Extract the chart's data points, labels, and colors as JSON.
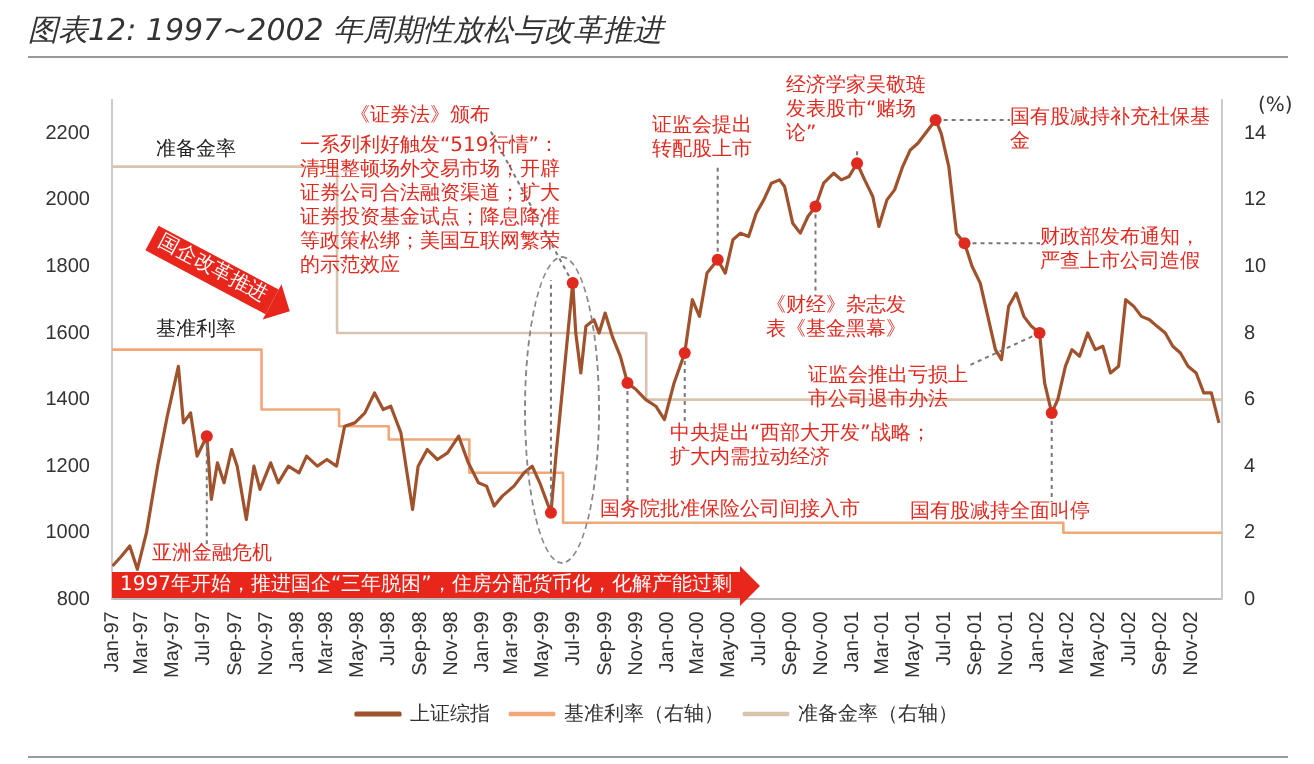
{
  "chart_data": {
    "type": "line",
    "title": "图表12: 1997~2002 年周期性放松与改革推进",
    "y2label": "(%)",
    "xlim": [
      "1997-01-01",
      "2002-12-31"
    ],
    "xticks": [
      {
        "value": "1997-01",
        "label": "Jan-97"
      },
      {
        "value": "1997-03",
        "label": "Mar-97"
      },
      {
        "value": "1997-05",
        "label": "May-97"
      },
      {
        "value": "1997-07",
        "label": "Jul-97"
      },
      {
        "value": "1997-09",
        "label": "Sep-97"
      },
      {
        "value": "1997-11",
        "label": "Nov-97"
      },
      {
        "value": "1998-01",
        "label": "Jan-98"
      },
      {
        "value": "1998-03",
        "label": "Mar-98"
      },
      {
        "value": "1998-05",
        "label": "May-98"
      },
      {
        "value": "1998-07",
        "label": "Jul-98"
      },
      {
        "value": "1998-09",
        "label": "Sep-98"
      },
      {
        "value": "1998-11",
        "label": "Nov-98"
      },
      {
        "value": "1999-01",
        "label": "Jan-99"
      },
      {
        "value": "1999-03",
        "label": "Mar-99"
      },
      {
        "value": "1999-05",
        "label": "May-99"
      },
      {
        "value": "1999-07",
        "label": "Jul-99"
      },
      {
        "value": "1999-09",
        "label": "Sep-99"
      },
      {
        "value": "1999-11",
        "label": "Nov-99"
      },
      {
        "value": "2000-01",
        "label": "Jan-00"
      },
      {
        "value": "2000-03",
        "label": "Mar-00"
      },
      {
        "value": "2000-05",
        "label": "May-00"
      },
      {
        "value": "2000-07",
        "label": "Jul-00"
      },
      {
        "value": "2000-09",
        "label": "Sep-00"
      },
      {
        "value": "2000-11",
        "label": "Nov-00"
      },
      {
        "value": "2001-01",
        "label": "Jan-01"
      },
      {
        "value": "2001-03",
        "label": "Mar-01"
      },
      {
        "value": "2001-05",
        "label": "May-01"
      },
      {
        "value": "2001-07",
        "label": "Jul-01"
      },
      {
        "value": "2001-09",
        "label": "Sep-01"
      },
      {
        "value": "2001-11",
        "label": "Nov-01"
      },
      {
        "value": "2002-01",
        "label": "Jan-02"
      },
      {
        "value": "2002-03",
        "label": "Mar-02"
      },
      {
        "value": "2002-05",
        "label": "May-02"
      },
      {
        "value": "2002-07",
        "label": "Jul-02"
      },
      {
        "value": "2002-09",
        "label": "Sep-02"
      },
      {
        "value": "2002-11",
        "label": "Nov-02"
      }
    ],
    "ylim": [
      800,
      2300
    ],
    "yticks": [
      800,
      1000,
      1200,
      1400,
      1600,
      1800,
      2000,
      2200
    ],
    "y2lim": [
      0,
      15
    ],
    "y2ticks": [
      0,
      2,
      4,
      6,
      8,
      10,
      12,
      14
    ],
    "legend": "bottom",
    "marker": "none",
    "line_style": "solid",
    "series": [
      {
        "name": "上证综指",
        "type": "line",
        "color": "#a0522d",
        "x": [
          "1997-01-02",
          "1997-01-20",
          "1997-02-05",
          "1997-02-20",
          "1997-03-10",
          "1997-04-01",
          "1997-04-20",
          "1997-05-12",
          "1997-05-22",
          "1997-06-05",
          "1997-06-18",
          "1997-07-07",
          "1997-07-16",
          "1997-07-28",
          "1997-08-10",
          "1997-08-25",
          "1997-09-05",
          "1997-09-23",
          "1997-10-08",
          "1997-10-20",
          "1997-11-10",
          "1997-11-25",
          "1997-12-15",
          "1998-01-05",
          "1998-01-20",
          "1998-02-10",
          "1998-03-01",
          "1998-03-20",
          "1998-04-05",
          "1998-04-25",
          "1998-05-15",
          "1998-06-03",
          "1998-06-20",
          "1998-07-05",
          "1998-07-25",
          "1998-08-17",
          "1998-08-28",
          "1998-09-15",
          "1998-10-05",
          "1998-10-25",
          "1998-11-16",
          "1998-12-05",
          "1998-12-25",
          "1999-01-10",
          "1999-01-25",
          "1999-02-10",
          "1999-03-05",
          "1999-03-25",
          "1999-04-10",
          "1999-04-25",
          "1999-05-17",
          "1999-05-28",
          "1999-06-10",
          "1999-06-29",
          "1999-07-05",
          "1999-07-15",
          "1999-07-25",
          "1999-08-10",
          "1999-08-20",
          "1999-09-01",
          "1999-09-15",
          "1999-10-01",
          "1999-10-15",
          "1999-11-01",
          "1999-11-20",
          "1999-12-10",
          "1999-12-27",
          "2000-01-15",
          "2000-02-05",
          "2000-02-20",
          "2000-03-05",
          "2000-03-20",
          "2000-04-10",
          "2000-04-25",
          "2000-05-10",
          "2000-05-25",
          "2000-06-10",
          "2000-06-25",
          "2000-07-10",
          "2000-07-25",
          "2000-08-10",
          "2000-08-20",
          "2000-09-05",
          "2000-09-20",
          "2000-10-05",
          "2000-10-20",
          "2000-11-05",
          "2000-11-25",
          "2000-12-10",
          "2000-12-25",
          "2001-01-10",
          "2001-01-25",
          "2001-02-10",
          "2001-02-22",
          "2001-03-10",
          "2001-03-25",
          "2001-04-10",
          "2001-04-25",
          "2001-05-10",
          "2001-05-25",
          "2001-06-14",
          "2001-06-25",
          "2001-07-10",
          "2001-07-25",
          "2001-08-10",
          "2001-08-25",
          "2001-09-10",
          "2001-09-25",
          "2001-10-10",
          "2001-10-22",
          "2001-11-05",
          "2001-11-20",
          "2001-12-05",
          "2001-12-20",
          "2002-01-05",
          "2002-01-15",
          "2002-01-29",
          "2002-02-10",
          "2002-02-25",
          "2002-03-10",
          "2002-03-25",
          "2002-04-10",
          "2002-04-25",
          "2002-05-10",
          "2002-05-25",
          "2002-06-10",
          "2002-06-24",
          "2002-07-10",
          "2002-07-25",
          "2002-08-10",
          "2002-08-25",
          "2002-09-10",
          "2002-09-25",
          "2002-10-10",
          "2002-10-25",
          "2002-11-10",
          "2002-11-25",
          "2002-12-10",
          "2002-12-25"
        ],
        "values": [
          900,
          930,
          960,
          890,
          1000,
          1200,
          1350,
          1500,
          1330,
          1360,
          1230,
          1290,
          1100,
          1210,
          1150,
          1250,
          1200,
          1040,
          1200,
          1130,
          1210,
          1150,
          1200,
          1180,
          1230,
          1200,
          1220,
          1200,
          1320,
          1330,
          1360,
          1420,
          1370,
          1380,
          1300,
          1070,
          1200,
          1250,
          1220,
          1240,
          1290,
          1210,
          1150,
          1140,
          1080,
          1110,
          1140,
          1180,
          1200,
          1150,
          1060,
          1250,
          1450,
          1750,
          1600,
          1480,
          1620,
          1640,
          1600,
          1660,
          1590,
          1530,
          1450,
          1430,
          1400,
          1380,
          1340,
          1450,
          1540,
          1700,
          1650,
          1780,
          1820,
          1780,
          1880,
          1900,
          1890,
          1960,
          2000,
          2050,
          2060,
          2040,
          1930,
          1900,
          1950,
          1980,
          2050,
          2080,
          2060,
          2070,
          2110,
          2060,
          2010,
          1920,
          2000,
          2030,
          2100,
          2150,
          2170,
          2200,
          2240,
          2200,
          2100,
          1900,
          1870,
          1800,
          1750,
          1650,
          1550,
          1520,
          1680,
          1720,
          1650,
          1620,
          1600,
          1450,
          1360,
          1400,
          1500,
          1550,
          1530,
          1600,
          1550,
          1560,
          1480,
          1500,
          1700,
          1680,
          1650,
          1640,
          1620,
          1600,
          1560,
          1540,
          1500,
          1480,
          1420,
          1420,
          1330
        ]
      },
      {
        "name": "基准利率（右轴）",
        "type": "step",
        "axis": "y2",
        "color": "#f0a878",
        "x": [
          "1997-01-01",
          "1997-10-23",
          "1998-03-25",
          "1998-07-01",
          "1998-12-07",
          "1999-06-10",
          "2002-02-21",
          "2002-12-31"
        ],
        "values": [
          7.5,
          5.7,
          5.2,
          4.8,
          3.8,
          2.3,
          2.0,
          2.0
        ]
      },
      {
        "name": "准备金率（右轴）",
        "type": "step",
        "axis": "y2",
        "color": "#d8c4ae",
        "x": [
          "1997-01-01",
          "1998-03-21",
          "1999-11-21",
          "2002-12-31"
        ],
        "values": [
          13,
          8,
          6,
          6
        ]
      }
    ],
    "annotations": [
      "准备金率",
      "基准利率",
      {
        "text": "亚洲金融危机",
        "x": "1997-07-07",
        "y": 1290
      },
      {
        "text": "《证券法》颁布",
        "x": "1999-06-29",
        "y": 1750
      },
      {
        "text": "一系列利好触发“519行情”：清理整顿场外交易市场；开辟证券公司合法融资渠道；扩大证券投资基金试点；降息降准等政策松绑；美国互联网繁荣的示范效应",
        "x": "1999-05-17",
        "y": 1060
      },
      {
        "text": "国务院批准保险公司间接入市",
        "x": "1999-10-15",
        "y": 1450
      },
      {
        "text": "中央提出“西部大开发”战略；扩大内需拉动经济",
        "x": "2000-02-05",
        "y": 1540
      },
      {
        "text": "证监会提出转配股上市",
        "x": "2000-04-10",
        "y": 1820
      },
      {
        "text": "《财经》杂志发表《基金黑幕》",
        "x": "2000-10-20",
        "y": 1980
      },
      {
        "text": "经济学家吴敬琏发表股市“赌场论”",
        "x": "2001-01-10",
        "y": 2110
      },
      {
        "text": "国有股减持补充社保基金",
        "x": "2001-06-14",
        "y": 2240
      },
      {
        "text": "财政部发布通知，严查上市公司造假",
        "x": "2001-08-10",
        "y": 1870
      },
      {
        "text": "证监会推出亏损上市公司退市办法",
        "x": "2002-01-05",
        "y": 1600
      },
      {
        "text": "国有股减持全面叫停",
        "x": "2002-01-29",
        "y": 1360
      },
      "国企改革推进",
      "1997年开始，推进国企“三年脱困”，住房分配货币化，化解产能过剩"
    ]
  }
}
